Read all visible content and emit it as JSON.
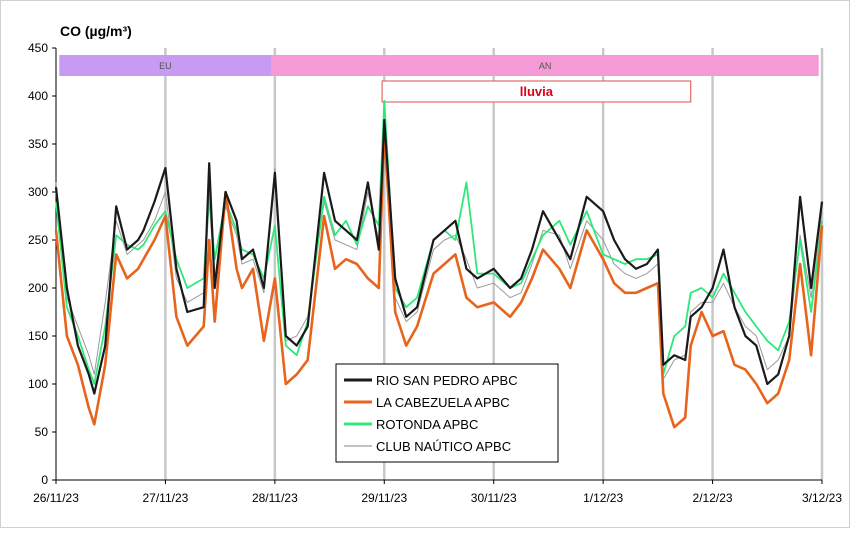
{
  "chart_data": {
    "type": "line",
    "title": "CO (µg/m³)",
    "xlabel": "",
    "ylabel": "",
    "ylim": [
      0,
      450
    ],
    "yticks": [
      "0",
      "50",
      "100",
      "150",
      "200",
      "250",
      "300",
      "350",
      "400",
      "450"
    ],
    "xlim": [
      0,
      7
    ],
    "xticks": [
      "26/11/23",
      "27/11/23",
      "28/11/23",
      "29/11/23",
      "30/11/23",
      "1/12/23",
      "2/12/23",
      "3/12/23"
    ],
    "grid": "vertical",
    "legend_position": "bottom-center",
    "bands": [
      {
        "label": "EU",
        "x_start": 0.03,
        "x_end": 1.97,
        "color": "#c79bf2"
      },
      {
        "label": "AN",
        "x_start": 1.97,
        "x_end": 6.97,
        "color": "#f59ad4"
      }
    ],
    "annotations": [
      {
        "label": "lluvia",
        "x_start": 2.98,
        "x_end": 5.8
      }
    ],
    "series": [
      {
        "name": "RIO SAN PEDRO APBC",
        "color": "#1a1a1a",
        "x": [
          0,
          0.1,
          0.2,
          0.3,
          0.35,
          0.45,
          0.55,
          0.65,
          0.75,
          0.8,
          0.9,
          1.0,
          1.1,
          1.2,
          1.35,
          1.4,
          1.45,
          1.55,
          1.65,
          1.7,
          1.8,
          1.9,
          2.0,
          2.1,
          2.2,
          2.3,
          2.45,
          2.55,
          2.65,
          2.75,
          2.85,
          2.95,
          3.0,
          3.1,
          3.2,
          3.3,
          3.45,
          3.55,
          3.65,
          3.75,
          3.85,
          4.0,
          4.15,
          4.25,
          4.35,
          4.45,
          4.6,
          4.7,
          4.85,
          5.0,
          5.1,
          5.2,
          5.3,
          5.4,
          5.5,
          5.55,
          5.65,
          5.75,
          5.8,
          5.9,
          6.0,
          6.1,
          6.2,
          6.3,
          6.4,
          6.5,
          6.6,
          6.7,
          6.8,
          6.9,
          7.0
        ],
        "values": [
          305,
          200,
          140,
          110,
          90,
          140,
          285,
          240,
          250,
          260,
          290,
          325,
          220,
          175,
          180,
          330,
          200,
          300,
          270,
          230,
          240,
          200,
          320,
          150,
          140,
          160,
          320,
          270,
          260,
          250,
          310,
          240,
          375,
          210,
          170,
          180,
          250,
          260,
          270,
          220,
          210,
          220,
          200,
          210,
          240,
          280,
          250,
          230,
          295,
          280,
          250,
          230,
          220,
          225,
          240,
          120,
          130,
          125,
          170,
          180,
          200,
          240,
          180,
          150,
          140,
          100,
          110,
          150,
          295,
          200,
          290
        ]
      },
      {
        "name": "LA CABEZUELA  APBC",
        "color": "#e8641c",
        "x": [
          0,
          0.1,
          0.2,
          0.3,
          0.35,
          0.45,
          0.55,
          0.65,
          0.75,
          0.8,
          0.9,
          1.0,
          1.1,
          1.2,
          1.35,
          1.4,
          1.45,
          1.55,
          1.65,
          1.7,
          1.8,
          1.9,
          2.0,
          2.1,
          2.2,
          2.3,
          2.45,
          2.55,
          2.65,
          2.75,
          2.85,
          2.95,
          3.0,
          3.1,
          3.2,
          3.3,
          3.45,
          3.55,
          3.65,
          3.75,
          3.85,
          4.0,
          4.15,
          4.25,
          4.35,
          4.45,
          4.6,
          4.7,
          4.85,
          5.0,
          5.1,
          5.2,
          5.3,
          5.4,
          5.5,
          5.55,
          5.65,
          5.75,
          5.8,
          5.9,
          6.0,
          6.1,
          6.2,
          6.3,
          6.4,
          6.5,
          6.6,
          6.7,
          6.8,
          6.9,
          7.0
        ],
        "values": [
          260,
          150,
          120,
          75,
          58,
          120,
          235,
          210,
          220,
          230,
          250,
          275,
          170,
          140,
          160,
          250,
          165,
          300,
          220,
          200,
          220,
          145,
          210,
          100,
          110,
          125,
          275,
          220,
          230,
          225,
          210,
          200,
          365,
          175,
          140,
          160,
          215,
          225,
          235,
          190,
          180,
          185,
          170,
          185,
          210,
          240,
          220,
          200,
          260,
          230,
          205,
          195,
          195,
          200,
          205,
          90,
          55,
          65,
          140,
          175,
          150,
          155,
          120,
          115,
          100,
          80,
          90,
          125,
          225,
          130,
          265
        ]
      },
      {
        "name": "ROTONDA  APBC",
        "color": "#2ee87a",
        "x": [
          0,
          0.1,
          0.2,
          0.3,
          0.35,
          0.45,
          0.55,
          0.65,
          0.75,
          0.8,
          0.9,
          1.0,
          1.1,
          1.2,
          1.35,
          1.4,
          1.45,
          1.55,
          1.65,
          1.7,
          1.8,
          1.9,
          2.0,
          2.1,
          2.2,
          2.3,
          2.45,
          2.55,
          2.65,
          2.75,
          2.85,
          2.95,
          3.0,
          3.1,
          3.2,
          3.3,
          3.45,
          3.55,
          3.65,
          3.75,
          3.85,
          4.0,
          4.15,
          4.25,
          4.35,
          4.45,
          4.6,
          4.7,
          4.85,
          5.0,
          5.1,
          5.2,
          5.3,
          5.4,
          5.5,
          5.55,
          5.65,
          5.75,
          5.8,
          5.9,
          6.0,
          6.1,
          6.2,
          6.3,
          6.4,
          6.5,
          6.6,
          6.7,
          6.8,
          6.9,
          7.0
        ],
        "values": [
          290,
          180,
          150,
          115,
          100,
          160,
          255,
          245,
          240,
          245,
          265,
          280,
          230,
          200,
          210,
          300,
          230,
          290,
          260,
          240,
          235,
          210,
          265,
          140,
          130,
          165,
          295,
          255,
          270,
          245,
          285,
          265,
          395,
          200,
          180,
          190,
          250,
          260,
          250,
          310,
          215,
          215,
          200,
          205,
          230,
          255,
          270,
          245,
          280,
          235,
          230,
          225,
          230,
          230,
          235,
          110,
          150,
          160,
          195,
          200,
          190,
          215,
          195,
          175,
          160,
          145,
          135,
          165,
          250,
          175,
          270
        ]
      },
      {
        "name": "CLUB NAÚTICO  APBC",
        "color": "#9a9a9a",
        "x": [
          0,
          0.1,
          0.2,
          0.3,
          0.35,
          0.45,
          0.55,
          0.65,
          0.75,
          0.8,
          0.9,
          1.0,
          1.1,
          1.2,
          1.35,
          1.4,
          1.45,
          1.55,
          1.65,
          1.7,
          1.8,
          1.9,
          2.0,
          2.1,
          2.2,
          2.3,
          2.45,
          2.55,
          2.65,
          2.75,
          2.85,
          2.95,
          3.0,
          3.1,
          3.2,
          3.3,
          3.45,
          3.55,
          3.65,
          3.75,
          3.85,
          4.0,
          4.15,
          4.25,
          4.35,
          4.45,
          4.6,
          4.7,
          4.85,
          5.0,
          5.1,
          5.2,
          5.3,
          5.4,
          5.5,
          5.55,
          5.65,
          5.75,
          5.8,
          5.9,
          6.0,
          6.1,
          6.2,
          6.3,
          6.4,
          6.5,
          6.6,
          6.7,
          6.8,
          6.9,
          7.0
        ],
        "values": [
          310,
          190,
          160,
          130,
          110,
          185,
          270,
          235,
          245,
          250,
          270,
          300,
          210,
          185,
          195,
          290,
          210,
          285,
          255,
          225,
          230,
          195,
          325,
          145,
          150,
          170,
          290,
          250,
          245,
          240,
          300,
          250,
          370,
          190,
          165,
          175,
          240,
          250,
          255,
          230,
          200,
          205,
          190,
          195,
          225,
          260,
          255,
          220,
          270,
          250,
          225,
          215,
          210,
          215,
          225,
          105,
          125,
          130,
          175,
          185,
          185,
          205,
          180,
          160,
          150,
          115,
          125,
          150,
          255,
          190,
          280
        ]
      }
    ]
  }
}
